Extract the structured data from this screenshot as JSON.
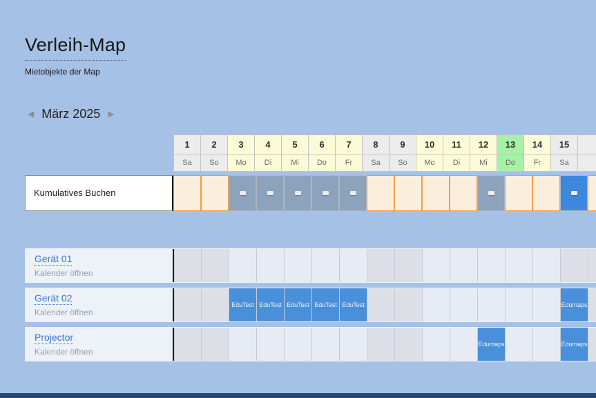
{
  "app": {
    "title": "Verleih-Map",
    "subtitle": "Mietobjekte der Map"
  },
  "month_nav": {
    "prev_icon": "◀",
    "label": "März 2025",
    "next_icon": "▶"
  },
  "calendar": {
    "days": [
      {
        "date": "1",
        "dow": "Sa",
        "kind": "weekend"
      },
      {
        "date": "2",
        "dow": "So",
        "kind": "weekend"
      },
      {
        "date": "3",
        "dow": "Mo",
        "kind": "weekday"
      },
      {
        "date": "4",
        "dow": "Di",
        "kind": "weekday"
      },
      {
        "date": "5",
        "dow": "Mi",
        "kind": "weekday"
      },
      {
        "date": "6",
        "dow": "Do",
        "kind": "weekday"
      },
      {
        "date": "7",
        "dow": "Fr",
        "kind": "weekday"
      },
      {
        "date": "8",
        "dow": "Sa",
        "kind": "weekend"
      },
      {
        "date": "9",
        "dow": "So",
        "kind": "weekend"
      },
      {
        "date": "10",
        "dow": "Mo",
        "kind": "weekday"
      },
      {
        "date": "11",
        "dow": "Di",
        "kind": "weekday"
      },
      {
        "date": "12",
        "dow": "Mi",
        "kind": "weekday"
      },
      {
        "date": "13",
        "dow": "Do",
        "kind": "today"
      },
      {
        "date": "14",
        "dow": "Fr",
        "kind": "weekday"
      },
      {
        "date": "15",
        "dow": "Sa",
        "kind": "weekend"
      },
      {
        "date": "",
        "dow": "",
        "kind": "weekend"
      }
    ],
    "kumulatives": {
      "label": "Kumulatives Buchen",
      "cells": [
        "free",
        "free",
        "booked",
        "booked",
        "booked",
        "booked",
        "booked",
        "free",
        "free",
        "free",
        "free",
        "booked",
        "free",
        "free",
        "selected",
        "free"
      ]
    },
    "resources": [
      {
        "name": "Gerät 01",
        "action": "Kalender öffnen",
        "cells": [
          "",
          "",
          "",
          "",
          "",
          "",
          "",
          "",
          "",
          "",
          "",
          "",
          "",
          "",
          "",
          ""
        ]
      },
      {
        "name": "Gerät 02",
        "action": "Kalender öffnen",
        "cells": [
          "",
          "",
          "EduTest",
          "EduTest",
          "EduTest",
          "EduTest",
          "EduTest",
          "",
          "",
          "",
          "",
          "",
          "",
          "",
          "Edumaps",
          ""
        ]
      },
      {
        "name": "Projector",
        "action": "Kalender öffnen",
        "cells": [
          "",
          "",
          "",
          "",
          "",
          "",
          "",
          "",
          "",
          "",
          "",
          "Edumaps",
          "",
          "",
          "Edumaps",
          ""
        ]
      }
    ]
  },
  "colors": {
    "background": "#a6c1e6",
    "header_weekend": "#ececec",
    "header_weekday": "#fbfbd8",
    "header_today": "#a5f1a5",
    "free_cell": "#fceedd",
    "free_border": "#f09d42",
    "booked_gray": "#8da2bb",
    "selected_blue": "#3d87dd",
    "booking_blue": "#4a8fd9",
    "row_weekend": "#dcdfe5",
    "row_weekday": "#e7ebf3",
    "label_bg": "#edf1f8",
    "link": "#3b77c9",
    "footer_bar": "#274672"
  }
}
